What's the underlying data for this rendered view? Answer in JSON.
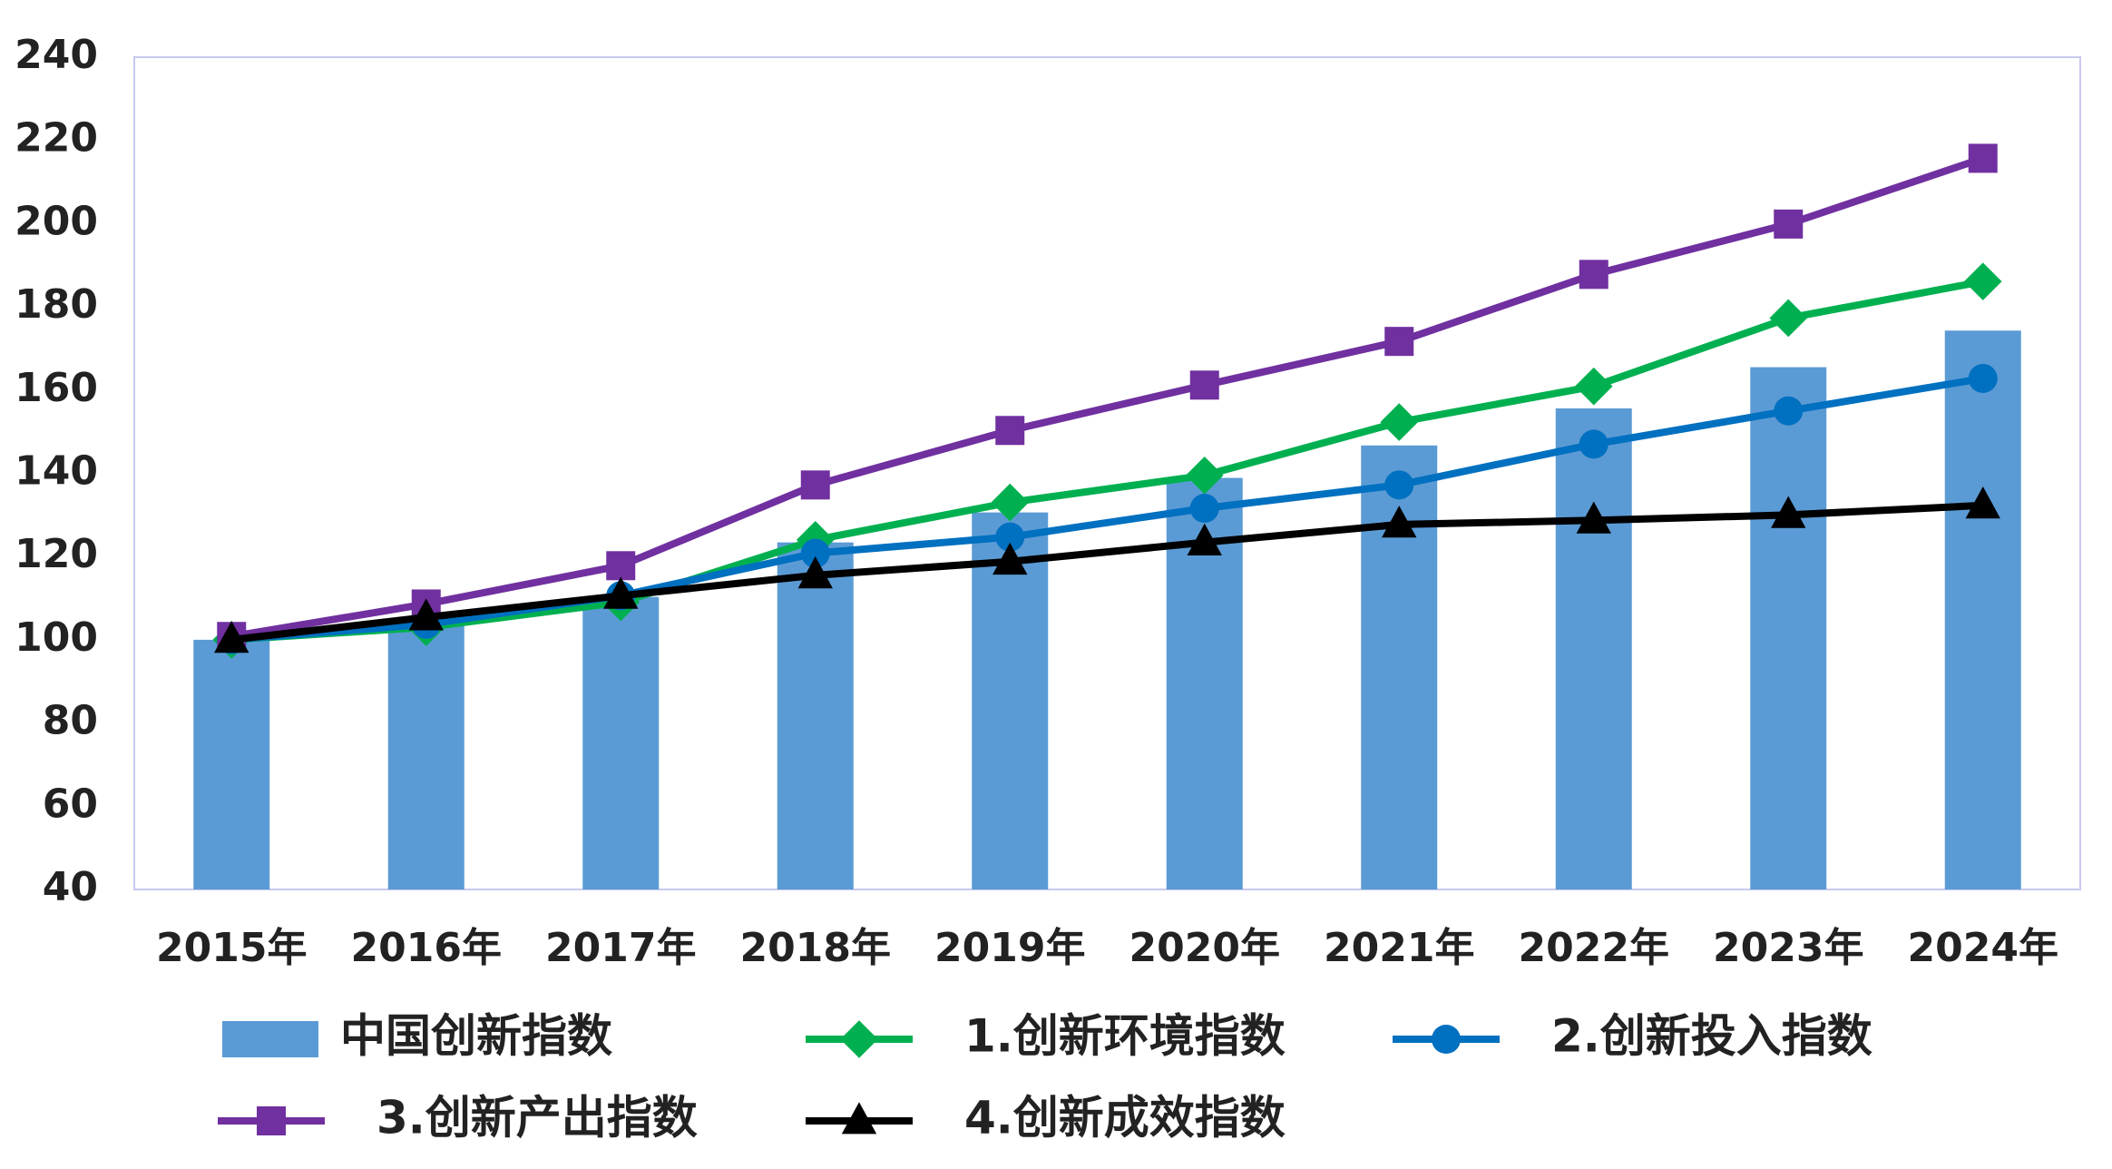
{
  "chart_data": {
    "type": "bar-line",
    "categories": [
      "2015年",
      "2016年",
      "2017年",
      "2018年",
      "2019年",
      "2020年",
      "2021年",
      "2022年",
      "2023年",
      "2024年"
    ],
    "ylim": [
      40,
      240
    ],
    "yticks": [
      40,
      60,
      80,
      100,
      120,
      140,
      160,
      180,
      200,
      220,
      240
    ],
    "series": [
      {
        "name": "中国创新指数",
        "type": "bar",
        "color": "#5b9bd5",
        "values": [
          100,
          104.4,
          110.3,
          123.4,
          130.6,
          138.9,
          146.7,
          155.6,
          165.5,
          174.3
        ]
      },
      {
        "name": "1.创新环境指数",
        "type": "line",
        "marker": "diamond",
        "color": "#00b050",
        "values": [
          100,
          103,
          109,
          124,
          133,
          139.5,
          152.3,
          160.9,
          177.3,
          186.1
        ]
      },
      {
        "name": "2.创新投入指数",
        "type": "line",
        "marker": "circle",
        "color": "#0070c0",
        "values": [
          100,
          103.7,
          110.6,
          120.8,
          124.7,
          131.6,
          137.2,
          147,
          155,
          162.8
        ]
      },
      {
        "name": "3.创新产出指数",
        "type": "line",
        "marker": "square",
        "color": "#7030a0",
        "values": [
          100.8,
          108.6,
          117.8,
          137.2,
          150.3,
          161.2,
          171.7,
          187.8,
          199.9,
          215.7
        ]
      },
      {
        "name": "4.创新成效指数",
        "type": "line",
        "marker": "triangle",
        "color": "#000000",
        "values": [
          100,
          105.4,
          110.6,
          115.5,
          118.8,
          123.4,
          127.7,
          128.7,
          130,
          132.3
        ]
      }
    ]
  }
}
